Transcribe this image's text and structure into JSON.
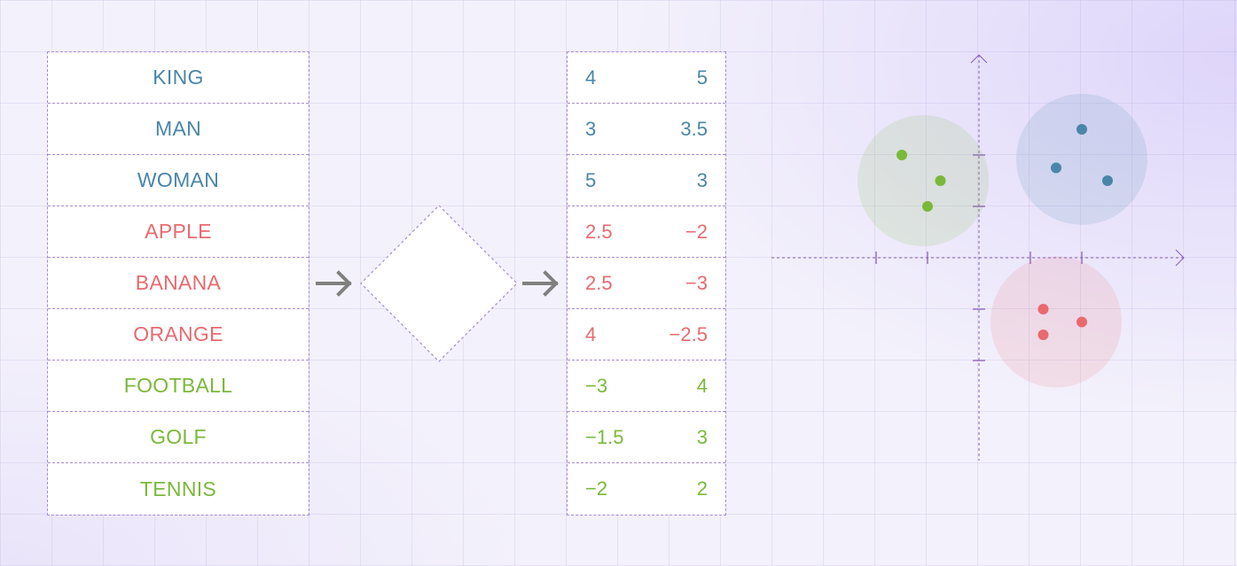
{
  "colors": {
    "people": "#4a86a8",
    "fruit": "#e86a6f",
    "sports": "#7bb83a",
    "border": "#a68bd0"
  },
  "rows": [
    {
      "word": "KING",
      "x": "4",
      "y": "5",
      "group": "people"
    },
    {
      "word": "MAN",
      "x": "3",
      "y": "3.5",
      "group": "people"
    },
    {
      "word": "WOMAN",
      "x": "5",
      "y": "3",
      "group": "people"
    },
    {
      "word": "APPLE",
      "x": "2.5",
      "y": "−2",
      "group": "fruit"
    },
    {
      "word": "BANANA",
      "x": "2.5",
      "y": "−3",
      "group": "fruit"
    },
    {
      "word": "ORANGE",
      "x": "4",
      "y": "−2.5",
      "group": "fruit"
    },
    {
      "word": "FOOTBALL",
      "x": "−3",
      "y": "4",
      "group": "sports"
    },
    {
      "word": "GOLF",
      "x": "−1.5",
      "y": "3",
      "group": "sports"
    },
    {
      "word": "TENNIS",
      "x": "−2",
      "y": "2",
      "group": "sports"
    }
  ],
  "plot": {
    "clusters": [
      {
        "group": "sports",
        "points": [
          [
            -3,
            4
          ],
          [
            -1.5,
            3
          ],
          [
            -2,
            2
          ]
        ]
      },
      {
        "group": "people",
        "points": [
          [
            4,
            5
          ],
          [
            3,
            3.5
          ],
          [
            5,
            3
          ]
        ]
      },
      {
        "group": "fruit",
        "points": [
          [
            2.5,
            -2
          ],
          [
            2.5,
            -3
          ],
          [
            4,
            -2.5
          ]
        ]
      }
    ]
  }
}
